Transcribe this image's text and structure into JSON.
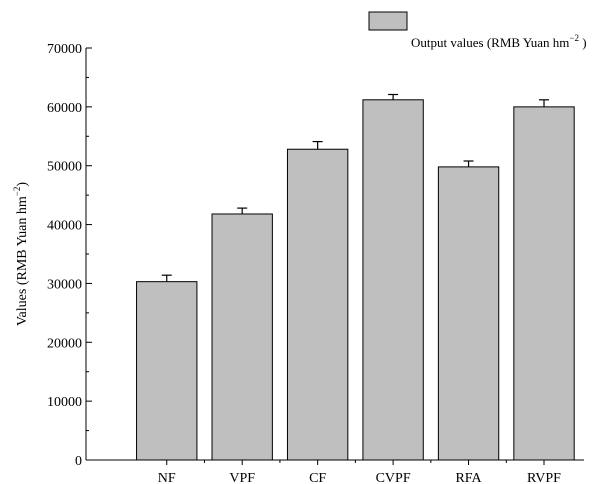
{
  "chart_data": {
    "type": "bar",
    "categories": [
      "NF",
      "VPF",
      "CF",
      "CVPF",
      "RFA",
      "RVPF"
    ],
    "series": [
      {
        "name": "Output values (RMB Yuan hm",
        "values": [
          30300,
          41800,
          52800,
          61200,
          49800,
          60000
        ],
        "errors": [
          1100,
          1000,
          1300,
          900,
          1000,
          1200
        ],
        "color": "#bfbfbf"
      }
    ],
    "legend": {
      "label_main": "Output values (RMB Yuan hm",
      "label_sup": "−2",
      "label_end": " )",
      "position": "top-right"
    },
    "ylabel_main": "Values (RMB Yuan hm",
    "ylabel_sup": "−2",
    "ylabel_end": ")",
    "xlabel": "",
    "title": "",
    "ylim": [
      0,
      70000
    ],
    "yticks": [
      0,
      10000,
      20000,
      30000,
      40000,
      50000,
      60000,
      70000
    ],
    "grid": false
  }
}
